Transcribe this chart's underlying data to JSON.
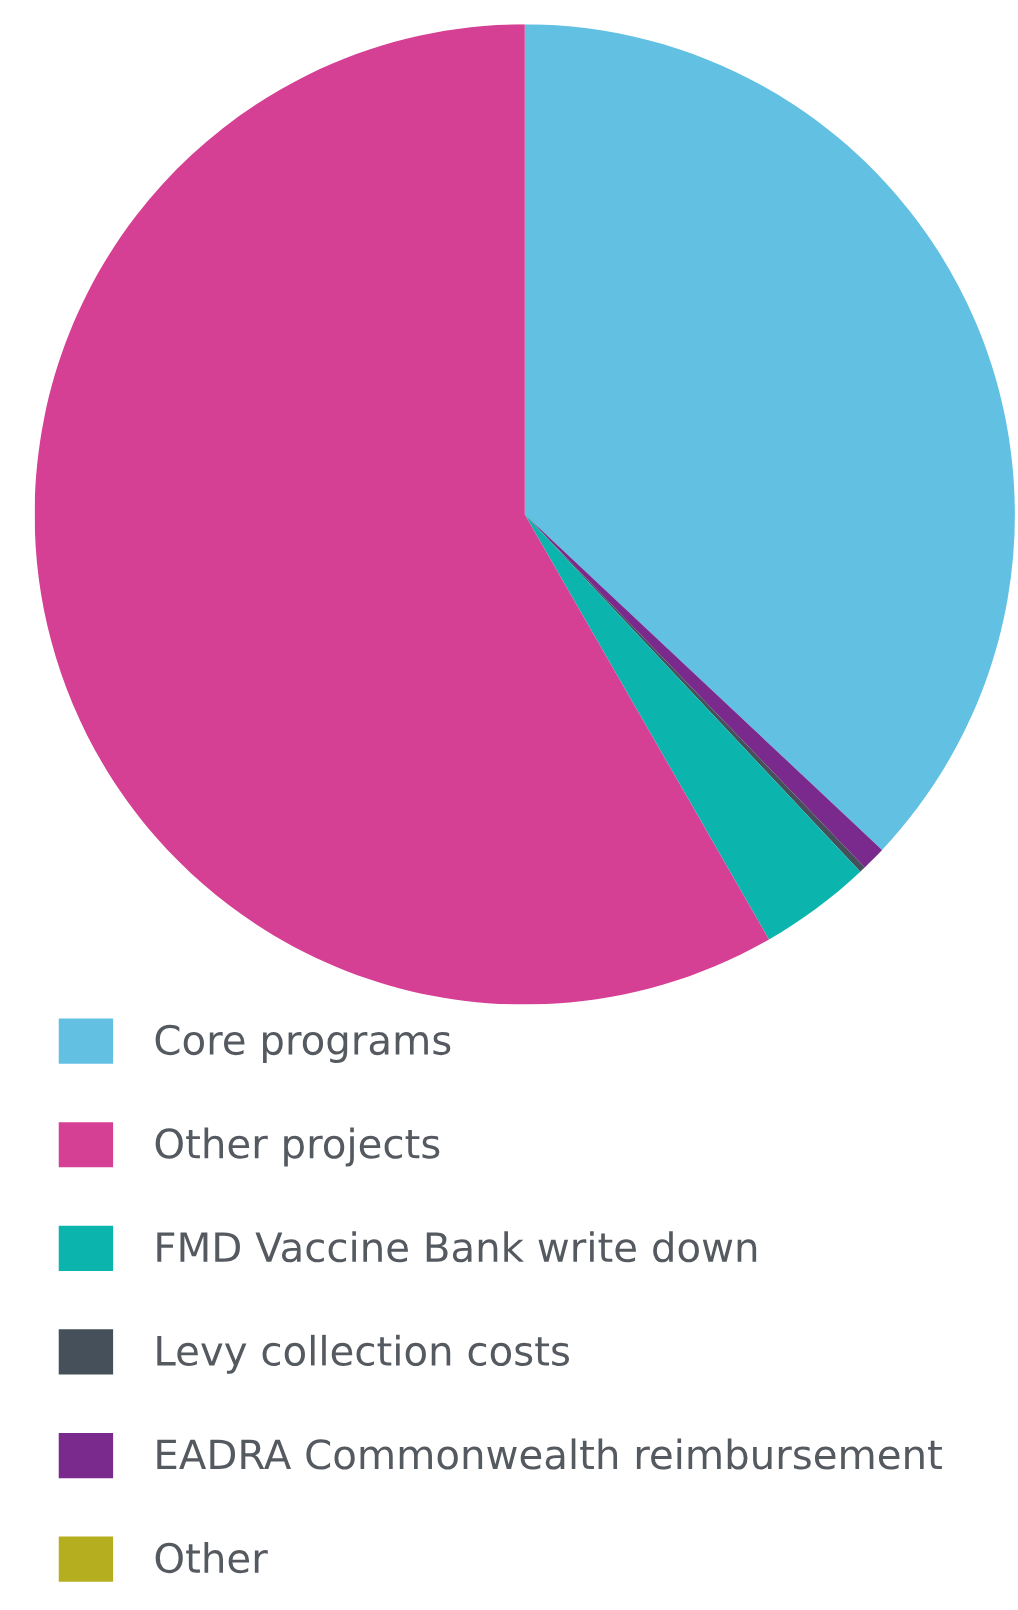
{
  "chart_data": {
    "type": "pie",
    "categories": [
      "Core programs",
      "Other projects",
      "FMD Vaccine Bank write down",
      "Levy collection costs",
      "EADRA Commonwealth reimbursement",
      "Other"
    ],
    "values": [
      37.0,
      58.3,
      3.7,
      0.2,
      0.8,
      0
    ],
    "colors": [
      "#62c0e3",
      "#d54094",
      "#0bb5ad",
      "#46505a",
      "#7a2a8c",
      "#b5af20"
    ],
    "legend": "bottom"
  }
}
